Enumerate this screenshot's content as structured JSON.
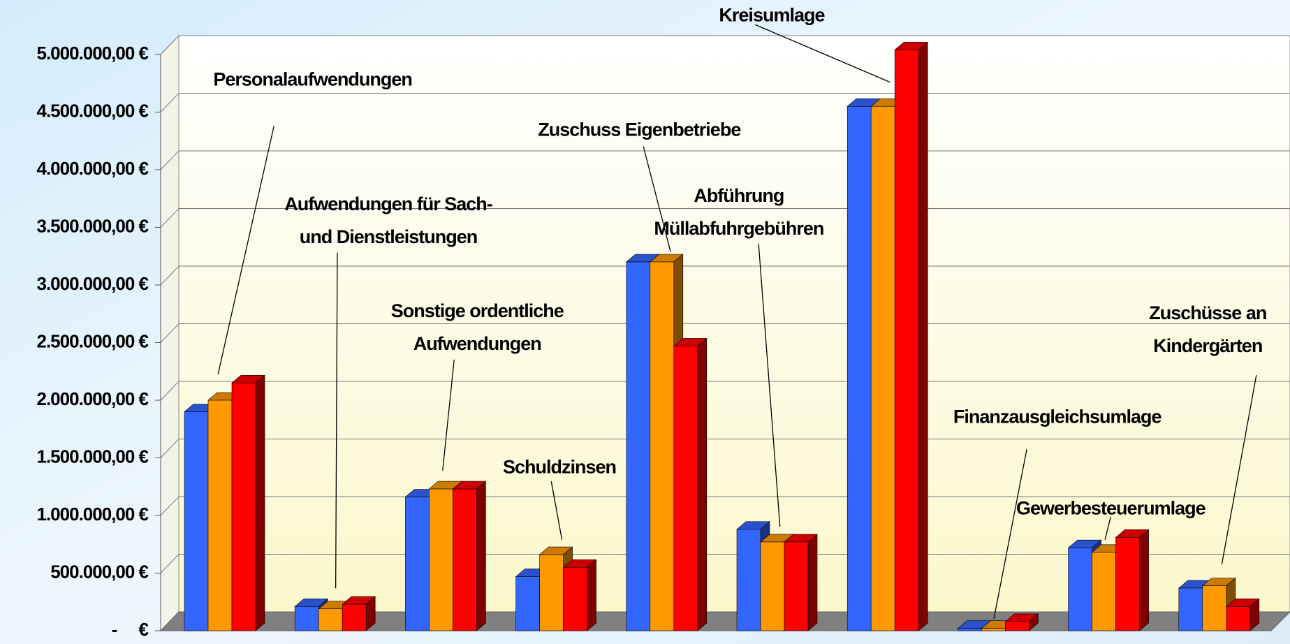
{
  "chart_data": {
    "type": "bar3d",
    "categories": [
      "Personalaufwendungen",
      "Aufwendungen für Sach-\nund Dienstleistungen",
      "Sonstige ordentliche\nAufwendungen",
      "Schuldzinsen",
      "Zuschuss Eigenbetriebe",
      "Abführung\nMüllabfuhrgebühren",
      "Kreisumlage",
      "Finanzausgleichsumlage",
      "Gewerbesteuerumlage",
      "Zuschüsse an\nKindergärten"
    ],
    "series": [
      {
        "color": "#3366ff",
        "values": [
          1900000,
          210000,
          1160000,
          470000,
          3200000,
          880000,
          4550000,
          20000,
          720000,
          370000
        ]
      },
      {
        "color": "#ff9900",
        "values": [
          2000000,
          190000,
          1230000,
          660000,
          3200000,
          770000,
          4550000,
          20000,
          680000,
          390000
        ]
      },
      {
        "color": "#ff0000",
        "values": [
          2150000,
          230000,
          1230000,
          550000,
          2470000,
          770000,
          5040000,
          80000,
          810000,
          210000
        ]
      }
    ],
    "ylim": [
      0,
      5000000
    ],
    "yticks": [
      {
        "value": 0,
        "label": "-     €"
      },
      {
        "value": 500000,
        "label": "500.000,00 €"
      },
      {
        "value": 1000000,
        "label": "1.000.000,00 €"
      },
      {
        "value": 1500000,
        "label": "1.500.000,00 €"
      },
      {
        "value": 2000000,
        "label": "2.000.000,00 €"
      },
      {
        "value": 2500000,
        "label": "2.500.000,00 €"
      },
      {
        "value": 3000000,
        "label": "3.000.000,00 €"
      },
      {
        "value": 3500000,
        "label": "3.500.000,00 €"
      },
      {
        "value": 4000000,
        "label": "4.000.000,00 €"
      },
      {
        "value": 4500000,
        "label": "4.500.000,00 €"
      },
      {
        "value": 5000000,
        "label": "5.000.000,00 €"
      }
    ],
    "grid": true
  }
}
